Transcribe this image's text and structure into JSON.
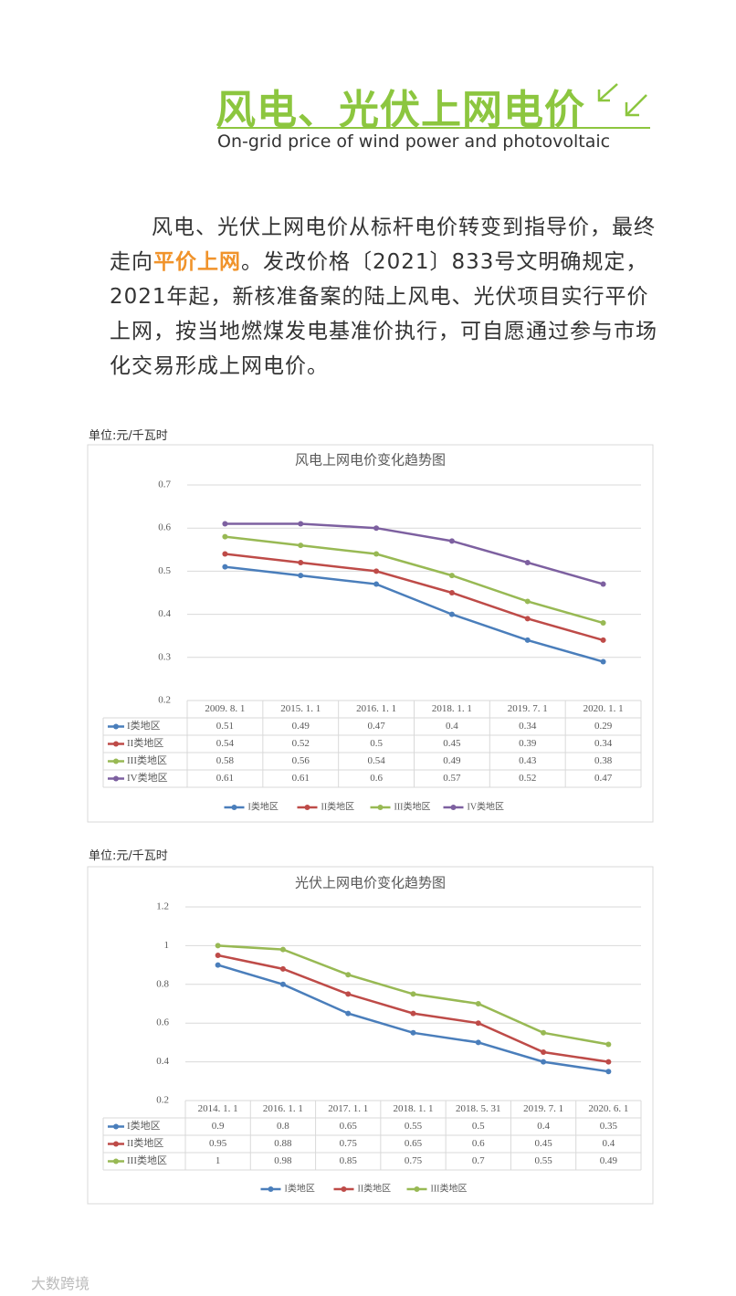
{
  "header": {
    "title": "风电、光伏上网电价",
    "subtitle": "On-grid price of wind power and photovoltaic"
  },
  "paragraph": [
    "风电、光伏上网电价从标杆电价转变到指导价，最终走向",
    "平价上网",
    "。发改价格〔2021〕833号文明确规定，2021年起，新核准备案的陆上风电、光伏项目实行平价上网，按当地燃煤发电基准价执行，可自愿通过参与市场化交易形成上网电价。"
  ],
  "chart_data": [
    {
      "type": "line",
      "unit": "单位:元/千瓦时",
      "title": "风电上网电价变化趋势图",
      "categories": [
        "2009. 8. 1",
        "2015. 1. 1",
        "2016. 1. 1",
        "2018. 1. 1",
        "2019. 7. 1",
        "2020. 1. 1"
      ],
      "series": [
        {
          "name": "I类地区",
          "color": "#4a7ebb",
          "values": [
            0.51,
            0.49,
            0.47,
            0.4,
            0.34,
            0.29
          ]
        },
        {
          "name": "II类地区",
          "color": "#be4b48",
          "values": [
            0.54,
            0.52,
            0.5,
            0.45,
            0.39,
            0.34
          ]
        },
        {
          "name": "III类地区",
          "color": "#98b954",
          "values": [
            0.58,
            0.56,
            0.54,
            0.49,
            0.43,
            0.38
          ]
        },
        {
          "name": "IV类地区",
          "color": "#7d60a0",
          "values": [
            0.61,
            0.61,
            0.6,
            0.57,
            0.52,
            0.47
          ]
        }
      ],
      "ylim": [
        0.2,
        0.7
      ],
      "yticks": [
        0.2,
        0.3,
        0.4,
        0.5,
        0.6,
        0.7
      ],
      "grid": true
    },
    {
      "type": "line",
      "unit": "单位:元/千瓦时",
      "title": "光伏上网电价变化趋势图",
      "categories": [
        "2014. 1. 1",
        "2016. 1. 1",
        "2017. 1. 1",
        "2018. 1. 1",
        "2018. 5. 31",
        "2019. 7. 1",
        "2020. 6. 1"
      ],
      "series": [
        {
          "name": "I类地区",
          "color": "#4a7ebb",
          "values": [
            0.9,
            0.8,
            0.65,
            0.55,
            0.5,
            0.4,
            0.35
          ]
        },
        {
          "name": "II类地区",
          "color": "#be4b48",
          "values": [
            0.95,
            0.88,
            0.75,
            0.65,
            0.6,
            0.45,
            0.4
          ]
        },
        {
          "name": "III类地区",
          "color": "#98b954",
          "values": [
            1,
            0.98,
            0.85,
            0.75,
            0.7,
            0.55,
            0.49
          ]
        }
      ],
      "ylim": [
        0.2,
        1.2
      ],
      "yticks": [
        0.2,
        0.4,
        0.6,
        0.8,
        1,
        1.2
      ],
      "grid": true
    }
  ],
  "watermark": "大数跨境"
}
